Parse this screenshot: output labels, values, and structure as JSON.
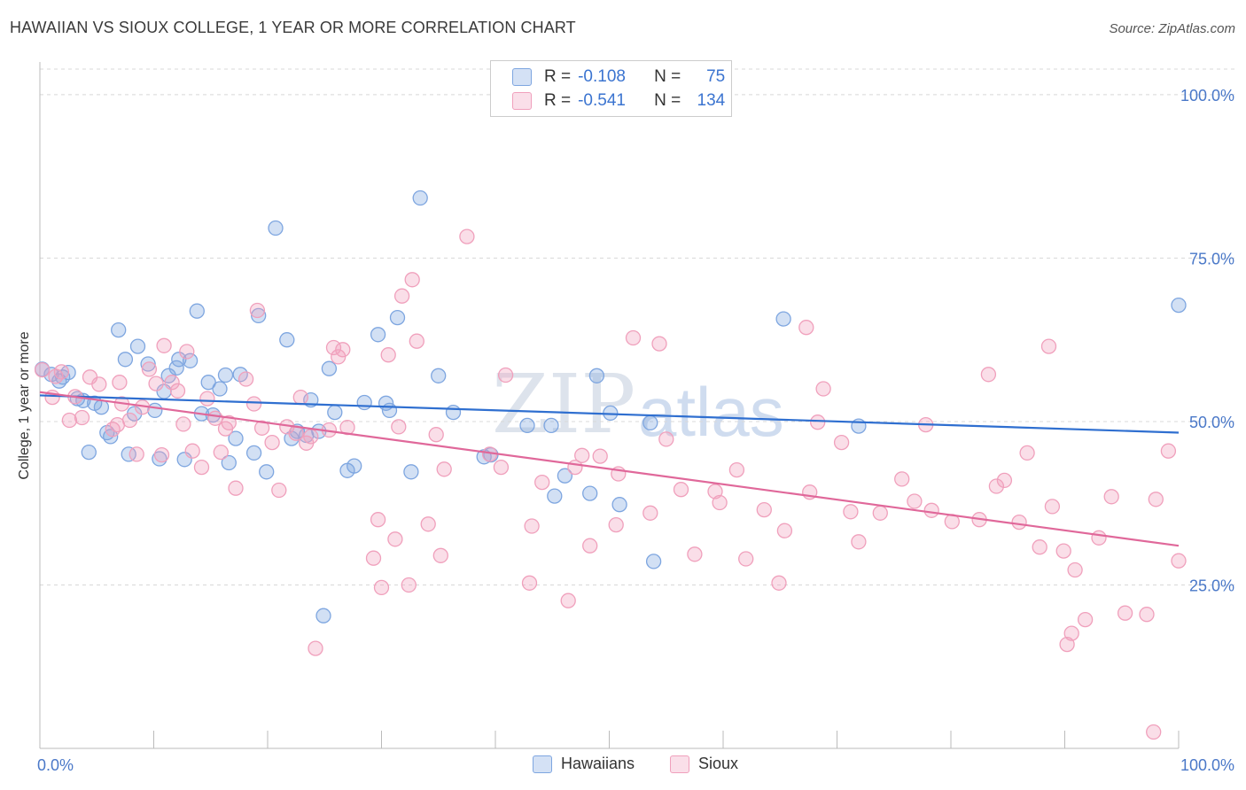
{
  "header": {
    "title": "HAWAIIAN VS SIOUX COLLEGE, 1 YEAR OR MORE CORRELATION CHART",
    "source": "Source: ZipAtlas.com"
  },
  "watermark": {
    "zip": "ZIP",
    "atlas": "atlas"
  },
  "legend": {
    "r_key": "R =",
    "n_key": "N =",
    "rows": [
      {
        "series": "Hawaiians",
        "r": "-0.108",
        "n": "75",
        "color": "#7ea6e0"
      },
      {
        "series": "Sioux",
        "r": "-0.541",
        "n": "134",
        "color": "#f0a0bc"
      }
    ]
  },
  "chart_data": {
    "type": "scatter",
    "title": "HAWAIIAN VS SIOUX COLLEGE, 1 YEAR OR MORE CORRELATION CHART",
    "xlabel": "",
    "ylabel": "College, 1 year or more",
    "xlim": [
      0,
      100
    ],
    "ylim": [
      0,
      105
    ],
    "x_tick_labels": [
      "0.0%",
      "100.0%"
    ],
    "y_ticks": [
      25,
      50,
      75,
      100
    ],
    "y_tick_labels": [
      "25.0%",
      "50.0%",
      "75.0%",
      "100.0%"
    ],
    "grid": "horizontal dashed",
    "legend_position": "top-center and bottom-center",
    "series": [
      {
        "name": "Hawaiians",
        "color": "#7ea6e0",
        "line_color": "#2f6fd0",
        "trend": [
          [
            0,
            54.0
          ],
          [
            100,
            48.3
          ]
        ],
        "points": [
          [
            0.2,
            58.0
          ],
          [
            1.0,
            57.2
          ],
          [
            1.7,
            56.2
          ],
          [
            2.5,
            57.5
          ],
          [
            2.0,
            56.8
          ],
          [
            3.3,
            53.5
          ],
          [
            3.8,
            53.2
          ],
          [
            4.3,
            45.3
          ],
          [
            4.8,
            52.8
          ],
          [
            5.4,
            52.2
          ],
          [
            5.9,
            48.3
          ],
          [
            6.2,
            47.7
          ],
          [
            6.9,
            64.0
          ],
          [
            7.5,
            59.5
          ],
          [
            7.8,
            45.0
          ],
          [
            8.3,
            51.2
          ],
          [
            8.6,
            61.5
          ],
          [
            9.5,
            58.8
          ],
          [
            10.1,
            51.7
          ],
          [
            10.5,
            44.3
          ],
          [
            10.9,
            54.6
          ],
          [
            11.3,
            57.0
          ],
          [
            12.0,
            58.2
          ],
          [
            12.2,
            59.5
          ],
          [
            12.7,
            44.2
          ],
          [
            13.2,
            59.3
          ],
          [
            13.8,
            66.9
          ],
          [
            14.2,
            51.2
          ],
          [
            14.8,
            56.0
          ],
          [
            15.2,
            51.0
          ],
          [
            15.8,
            55.0
          ],
          [
            16.3,
            57.1
          ],
          [
            16.6,
            43.7
          ],
          [
            17.2,
            47.4
          ],
          [
            17.6,
            57.2
          ],
          [
            18.8,
            45.2
          ],
          [
            19.2,
            66.2
          ],
          [
            19.9,
            42.3
          ],
          [
            20.7,
            79.6
          ],
          [
            21.7,
            62.5
          ],
          [
            22.1,
            47.4
          ],
          [
            22.6,
            48.5
          ],
          [
            23.4,
            47.9
          ],
          [
            23.8,
            53.3
          ],
          [
            24.5,
            48.5
          ],
          [
            24.9,
            20.3
          ],
          [
            25.4,
            58.1
          ],
          [
            25.9,
            51.4
          ],
          [
            27.0,
            42.5
          ],
          [
            27.6,
            43.2
          ],
          [
            28.5,
            52.9
          ],
          [
            29.7,
            63.3
          ],
          [
            30.4,
            52.8
          ],
          [
            30.7,
            51.7
          ],
          [
            31.4,
            65.9
          ],
          [
            32.6,
            42.3
          ],
          [
            33.4,
            84.2
          ],
          [
            35.0,
            57.0
          ],
          [
            36.3,
            51.4
          ],
          [
            39.0,
            44.6
          ],
          [
            39.6,
            44.9
          ],
          [
            42.8,
            49.4
          ],
          [
            44.9,
            49.4
          ],
          [
            45.2,
            38.6
          ],
          [
            46.1,
            41.7
          ],
          [
            48.3,
            39.0
          ],
          [
            48.9,
            57.0
          ],
          [
            50.1,
            51.3
          ],
          [
            50.9,
            37.3
          ],
          [
            53.6,
            49.8
          ],
          [
            53.9,
            28.6
          ],
          [
            65.3,
            65.7
          ],
          [
            71.9,
            49.3
          ],
          [
            100.0,
            67.8
          ]
        ]
      },
      {
        "name": "Sioux",
        "color": "#f0a0bc",
        "line_color": "#e0689a",
        "trend": [
          [
            0,
            54.5
          ],
          [
            100,
            31.0
          ]
        ],
        "points": [
          [
            0.2,
            57.9
          ],
          [
            1.1,
            53.7
          ],
          [
            1.4,
            56.9
          ],
          [
            1.9,
            57.6
          ],
          [
            2.6,
            50.2
          ],
          [
            3.1,
            53.8
          ],
          [
            3.7,
            50.6
          ],
          [
            4.4,
            56.8
          ],
          [
            5.2,
            55.7
          ],
          [
            6.4,
            48.8
          ],
          [
            6.8,
            49.5
          ],
          [
            7.0,
            56.0
          ],
          [
            7.2,
            52.7
          ],
          [
            7.9,
            50.2
          ],
          [
            8.5,
            45.0
          ],
          [
            9.0,
            52.2
          ],
          [
            9.6,
            58.0
          ],
          [
            10.2,
            55.8
          ],
          [
            10.7,
            44.9
          ],
          [
            10.9,
            61.6
          ],
          [
            11.6,
            56.0
          ],
          [
            12.1,
            54.7
          ],
          [
            12.6,
            49.6
          ],
          [
            12.9,
            60.7
          ],
          [
            13.4,
            45.5
          ],
          [
            14.2,
            43.0
          ],
          [
            14.7,
            53.5
          ],
          [
            15.4,
            50.5
          ],
          [
            15.9,
            45.3
          ],
          [
            16.3,
            48.9
          ],
          [
            16.6,
            49.8
          ],
          [
            17.2,
            39.8
          ],
          [
            18.1,
            56.5
          ],
          [
            18.8,
            52.7
          ],
          [
            19.1,
            67.0
          ],
          [
            19.5,
            49.0
          ],
          [
            20.4,
            46.8
          ],
          [
            21.0,
            39.5
          ],
          [
            21.7,
            49.2
          ],
          [
            22.5,
            48.2
          ],
          [
            22.9,
            53.7
          ],
          [
            23.4,
            46.7
          ],
          [
            23.8,
            47.7
          ],
          [
            24.2,
            15.3
          ],
          [
            25.4,
            48.7
          ],
          [
            25.8,
            61.3
          ],
          [
            26.2,
            59.9
          ],
          [
            26.6,
            61.0
          ],
          [
            27.0,
            49.1
          ],
          [
            29.3,
            29.1
          ],
          [
            29.7,
            35.0
          ],
          [
            30.0,
            24.6
          ],
          [
            30.6,
            60.2
          ],
          [
            31.5,
            49.2
          ],
          [
            31.8,
            69.2
          ],
          [
            32.4,
            25.0
          ],
          [
            32.7,
            71.7
          ],
          [
            33.1,
            62.3
          ],
          [
            34.1,
            34.3
          ],
          [
            34.8,
            48.0
          ],
          [
            35.2,
            29.5
          ],
          [
            35.5,
            42.7
          ],
          [
            37.5,
            78.3
          ],
          [
            39.5,
            45.0
          ],
          [
            40.5,
            43.0
          ],
          [
            40.9,
            57.1
          ],
          [
            43.0,
            25.3
          ],
          [
            43.2,
            34.0
          ],
          [
            44.1,
            40.7
          ],
          [
            46.4,
            22.6
          ],
          [
            47.0,
            43.0
          ],
          [
            47.6,
            44.8
          ],
          [
            48.3,
            31.0
          ],
          [
            49.2,
            44.7
          ],
          [
            50.6,
            34.2
          ],
          [
            50.8,
            42.0
          ],
          [
            52.1,
            62.8
          ],
          [
            53.6,
            36.0
          ],
          [
            54.4,
            61.9
          ],
          [
            55.0,
            47.3
          ],
          [
            56.3,
            39.6
          ],
          [
            57.5,
            29.7
          ],
          [
            59.3,
            39.3
          ],
          [
            59.7,
            37.6
          ],
          [
            61.2,
            42.6
          ],
          [
            62.0,
            29.0
          ],
          [
            63.6,
            36.5
          ],
          [
            64.9,
            25.3
          ],
          [
            65.4,
            33.3
          ],
          [
            67.3,
            64.4
          ],
          [
            67.6,
            39.2
          ],
          [
            68.3,
            49.9
          ],
          [
            68.8,
            55.0
          ],
          [
            70.4,
            46.8
          ],
          [
            71.2,
            36.2
          ],
          [
            71.9,
            31.6
          ],
          [
            73.8,
            36.0
          ],
          [
            75.7,
            41.2
          ],
          [
            76.8,
            37.8
          ],
          [
            77.8,
            49.5
          ],
          [
            78.3,
            36.4
          ],
          [
            80.1,
            34.7
          ],
          [
            82.5,
            35.0
          ],
          [
            83.3,
            57.2
          ],
          [
            84.0,
            40.1
          ],
          [
            84.7,
            41.0
          ],
          [
            86.0,
            34.6
          ],
          [
            86.7,
            45.2
          ],
          [
            87.8,
            30.8
          ],
          [
            88.6,
            61.5
          ],
          [
            88.9,
            37.0
          ],
          [
            89.9,
            30.2
          ],
          [
            90.2,
            15.9
          ],
          [
            90.6,
            17.6
          ],
          [
            90.9,
            27.3
          ],
          [
            91.8,
            19.7
          ],
          [
            93.0,
            32.2
          ],
          [
            94.1,
            38.5
          ],
          [
            95.3,
            20.7
          ],
          [
            97.2,
            20.5
          ],
          [
            97.8,
            2.5
          ],
          [
            98.0,
            38.1
          ],
          [
            99.1,
            45.5
          ],
          [
            100.0,
            28.7
          ],
          [
            31.2,
            32.0
          ]
        ]
      }
    ]
  }
}
